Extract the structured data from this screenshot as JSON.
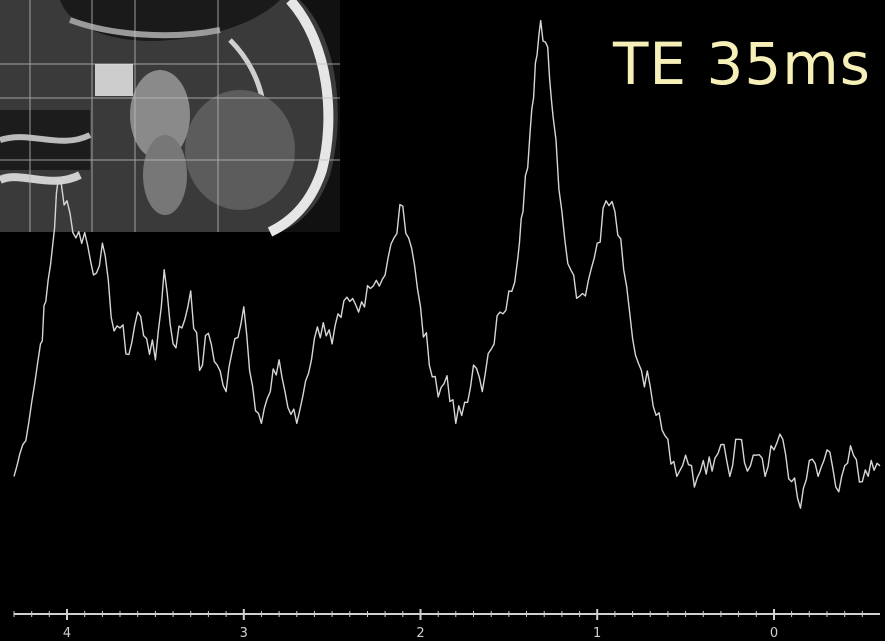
{
  "overlay": {
    "label": "TE 35ms",
    "label_color": "#f6f0b8"
  },
  "inset_image": {
    "kind": "sagittal MRI brain with voxel grid",
    "highlight_color": "#e8e8e8"
  },
  "colors": {
    "background": "#000000",
    "trace": "#d6d6d6",
    "axis": "#d0d0d0"
  },
  "chart_data": {
    "type": "line",
    "title": "",
    "xlabel": "",
    "ylabel": "",
    "x_reversed": true,
    "xlim": [
      -0.6,
      4.3
    ],
    "ylim": [
      0,
      1
    ],
    "x_ticks": [
      4,
      3,
      2,
      1,
      0
    ],
    "x_tick_labels": [
      "4",
      "3",
      "2",
      "1",
      "0"
    ],
    "minor_tick_step": 0.1,
    "series": [
      {
        "points": [
          [
            4.3,
            0.12
          ],
          [
            4.25,
            0.18
          ],
          [
            4.2,
            0.26
          ],
          [
            4.15,
            0.37
          ],
          [
            4.12,
            0.45
          ],
          [
            4.08,
            0.56
          ],
          [
            4.05,
            0.68
          ],
          [
            4.0,
            0.64
          ],
          [
            3.95,
            0.57
          ],
          [
            3.9,
            0.58
          ],
          [
            3.85,
            0.5
          ],
          [
            3.8,
            0.56
          ],
          [
            3.75,
            0.42
          ],
          [
            3.7,
            0.4
          ],
          [
            3.65,
            0.35
          ],
          [
            3.6,
            0.43
          ],
          [
            3.55,
            0.38
          ],
          [
            3.5,
            0.34
          ],
          [
            3.45,
            0.51
          ],
          [
            3.4,
            0.37
          ],
          [
            3.35,
            0.4
          ],
          [
            3.3,
            0.47
          ],
          [
            3.25,
            0.32
          ],
          [
            3.2,
            0.39
          ],
          [
            3.15,
            0.33
          ],
          [
            3.1,
            0.28
          ],
          [
            3.05,
            0.38
          ],
          [
            3.0,
            0.44
          ],
          [
            2.95,
            0.29
          ],
          [
            2.9,
            0.22
          ],
          [
            2.85,
            0.28
          ],
          [
            2.8,
            0.34
          ],
          [
            2.75,
            0.25
          ],
          [
            2.7,
            0.22
          ],
          [
            2.65,
            0.3
          ],
          [
            2.6,
            0.38
          ],
          [
            2.55,
            0.41
          ],
          [
            2.5,
            0.37
          ],
          [
            2.45,
            0.42
          ],
          [
            2.4,
            0.45
          ],
          [
            2.35,
            0.43
          ],
          [
            2.3,
            0.48
          ],
          [
            2.25,
            0.49
          ],
          [
            2.2,
            0.5
          ],
          [
            2.15,
            0.57
          ],
          [
            2.1,
            0.63
          ],
          [
            2.05,
            0.55
          ],
          [
            2.0,
            0.44
          ],
          [
            1.95,
            0.33
          ],
          [
            1.9,
            0.27
          ],
          [
            1.85,
            0.31
          ],
          [
            1.8,
            0.22
          ],
          [
            1.75,
            0.26
          ],
          [
            1.7,
            0.33
          ],
          [
            1.65,
            0.28
          ],
          [
            1.6,
            0.36
          ],
          [
            1.55,
            0.43
          ],
          [
            1.5,
            0.47
          ],
          [
            1.45,
            0.53
          ],
          [
            1.42,
            0.62
          ],
          [
            1.38,
            0.77
          ],
          [
            1.35,
            0.9
          ],
          [
            1.32,
            0.98
          ],
          [
            1.28,
            0.93
          ],
          [
            1.25,
            0.8
          ],
          [
            1.2,
            0.62
          ],
          [
            1.15,
            0.51
          ],
          [
            1.1,
            0.46
          ],
          [
            1.05,
            0.49
          ],
          [
            1.0,
            0.56
          ],
          [
            0.95,
            0.64
          ],
          [
            0.9,
            0.62
          ],
          [
            0.85,
            0.51
          ],
          [
            0.8,
            0.38
          ],
          [
            0.75,
            0.32
          ],
          [
            0.7,
            0.29
          ],
          [
            0.65,
            0.24
          ],
          [
            0.6,
            0.19
          ],
          [
            0.55,
            0.12
          ],
          [
            0.5,
            0.16
          ],
          [
            0.45,
            0.1
          ],
          [
            0.4,
            0.15
          ],
          [
            0.35,
            0.13
          ],
          [
            0.3,
            0.18
          ],
          [
            0.25,
            0.12
          ],
          [
            0.2,
            0.19
          ],
          [
            0.15,
            0.13
          ],
          [
            0.1,
            0.16
          ],
          [
            0.05,
            0.12
          ],
          [
            0.0,
            0.17
          ],
          [
            -0.05,
            0.19
          ],
          [
            -0.1,
            0.11
          ],
          [
            -0.15,
            0.06
          ],
          [
            -0.2,
            0.15
          ],
          [
            -0.25,
            0.12
          ],
          [
            -0.3,
            0.17
          ],
          [
            -0.35,
            0.1
          ],
          [
            -0.4,
            0.14
          ],
          [
            -0.45,
            0.16
          ],
          [
            -0.5,
            0.11
          ],
          [
            -0.55,
            0.15
          ],
          [
            -0.6,
            0.14
          ]
        ]
      }
    ]
  }
}
